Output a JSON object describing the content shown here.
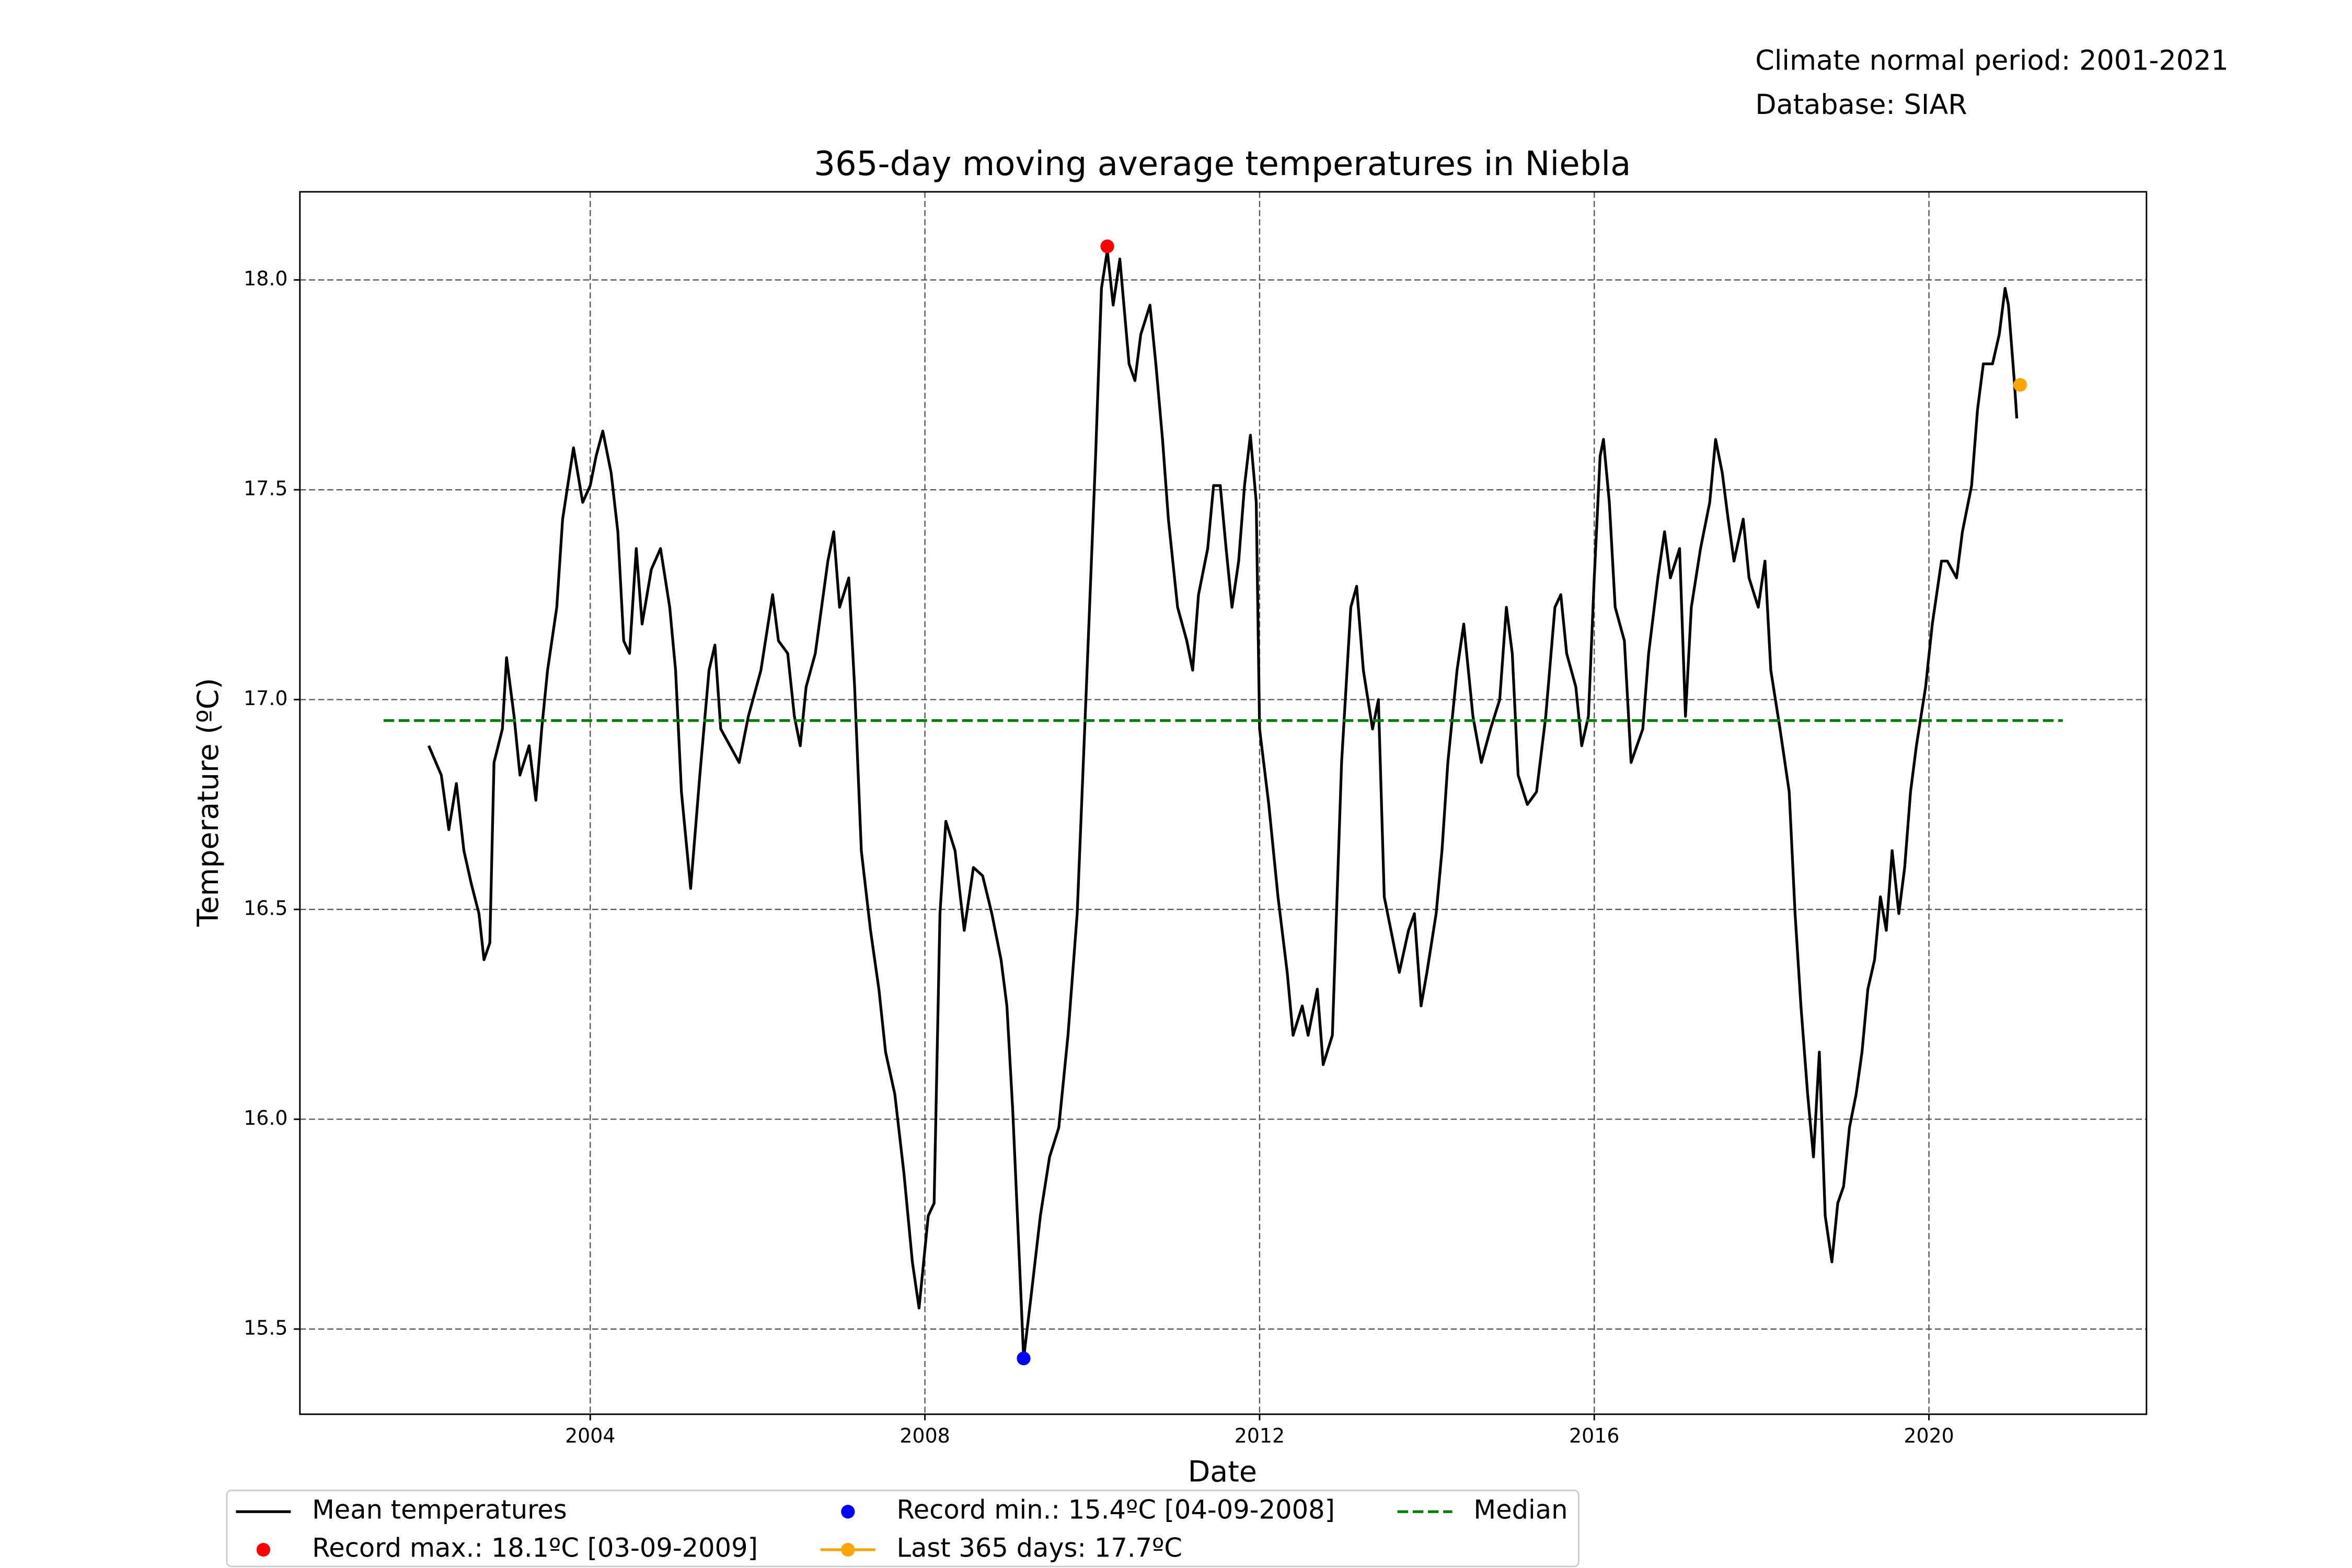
{
  "chart_data": {
    "type": "line",
    "title": "365-day moving average temperatures in Niebla",
    "annotations": [
      "Climate normal period: 2001-2021",
      "Database: SIAR"
    ],
    "xlabel": "Date",
    "ylabel": "Temperature (ºC)",
    "xlim": [
      2000.53,
      2022.6
    ],
    "ylim": [
      15.297,
      18.21
    ],
    "xticks": [
      2004,
      2008,
      2012,
      2016,
      2020
    ],
    "yticks": [
      {
        "value": 15.5,
        "label": "15.5"
      },
      {
        "value": 16,
        "label": "16.0"
      },
      {
        "value": 16.5,
        "label": "16.5"
      },
      {
        "value": 17,
        "label": "17.0"
      },
      {
        "value": 17.5,
        "label": "17.5"
      },
      {
        "value": 18,
        "label": "18.0"
      }
    ],
    "grid": true,
    "legend": "lower center",
    "series": [
      {
        "name": "Mean temperatures",
        "color": "#000000",
        "style": "line",
        "x": [
          2002.07,
          2002.22,
          2002.31,
          2002.4,
          2002.49,
          2002.58,
          2002.67,
          2002.73,
          2002.8,
          2002.85,
          2002.95,
          2003.0,
          2003.09,
          2003.16,
          2003.27,
          2003.35,
          2003.42,
          2003.49,
          2003.6,
          2003.67,
          2003.8,
          2003.91,
          2004.0,
          2004.07,
          2004.15,
          2004.25,
          2004.33,
          2004.4,
          2004.47,
          2004.55,
          2004.62,
          2004.73,
          2004.84,
          2004.95,
          2005.02,
          2005.09,
          2005.2,
          2005.31,
          2005.42,
          2005.49,
          2005.56,
          2005.67,
          2005.78,
          2005.89,
          2006.04,
          2006.18,
          2006.25,
          2006.36,
          2006.44,
          2006.51,
          2006.58,
          2006.69,
          2006.84,
          2006.91,
          2006.98,
          2007.09,
          2007.16,
          2007.24,
          2007.35,
          2007.45,
          2007.53,
          2007.64,
          2007.75,
          2007.85,
          2007.93,
          2008.04,
          2008.11,
          2008.18,
          2008.25,
          2008.36,
          2008.47,
          2008.58,
          2008.69,
          2008.8,
          2008.91,
          2008.98,
          2009.05,
          2009.13,
          2009.18,
          2009.27,
          2009.38,
          2009.49,
          2009.6,
          2009.71,
          2009.82,
          2009.93,
          2010.04,
          2010.11,
          2010.18,
          2010.25,
          2010.33,
          2010.44,
          2010.51,
          2010.58,
          2010.69,
          2010.76,
          2010.84,
          2010.91,
          2011.02,
          2011.13,
          2011.2,
          2011.27,
          2011.38,
          2011.45,
          2011.53,
          2011.6,
          2011.67,
          2011.75,
          2011.82,
          2011.89,
          2011.96,
          2012.0,
          2012.11,
          2012.22,
          2012.33,
          2012.4,
          2012.51,
          2012.58,
          2012.69,
          2012.76,
          2012.87,
          2012.98,
          2013.09,
          2013.16,
          2013.24,
          2013.35,
          2013.42,
          2013.49,
          2013.6,
          2013.67,
          2013.78,
          2013.85,
          2013.93,
          2014.0,
          2014.11,
          2014.18,
          2014.25,
          2014.36,
          2014.44,
          2014.55,
          2014.65,
          2014.76,
          2014.87,
          2014.95,
          2015.02,
          2015.09,
          2015.2,
          2015.31,
          2015.42,
          2015.53,
          2015.6,
          2015.67,
          2015.78,
          2015.85,
          2015.93,
          2016.0,
          2016.07,
          2016.11,
          2016.18,
          2016.25,
          2016.36,
          2016.44,
          2016.51,
          2016.58,
          2016.65,
          2016.76,
          2016.84,
          2016.91,
          2017.02,
          2017.09,
          2017.16,
          2017.27,
          2017.38,
          2017.45,
          2017.53,
          2017.6,
          2017.67,
          2017.78,
          2017.85,
          2017.96,
          2018.04,
          2018.11,
          2018.22,
          2018.33,
          2018.4,
          2018.47,
          2018.55,
          2018.62,
          2018.69,
          2018.76,
          2018.84,
          2018.91,
          2018.98,
          2019.05,
          2019.13,
          2019.2,
          2019.27,
          2019.35,
          2019.42,
          2019.49,
          2019.56,
          2019.64,
          2019.71,
          2019.78,
          2019.85,
          2019.96,
          2020.04,
          2020.15,
          2020.22,
          2020.33,
          2020.4,
          2020.51,
          2020.58,
          2020.65,
          2020.76,
          2020.84,
          2020.91,
          2020.95,
          2021.02,
          2021.05
        ],
        "values": [
          16.89,
          16.82,
          16.69,
          16.8,
          16.64,
          16.56,
          16.49,
          16.38,
          16.42,
          16.85,
          16.93,
          17.1,
          16.96,
          16.82,
          16.89,
          16.76,
          16.93,
          17.07,
          17.22,
          17.43,
          17.6,
          17.47,
          17.51,
          17.58,
          17.64,
          17.54,
          17.4,
          17.14,
          17.11,
          17.36,
          17.18,
          17.31,
          17.36,
          17.22,
          17.07,
          16.78,
          16.55,
          16.82,
          17.07,
          17.13,
          16.93,
          16.89,
          16.85,
          16.96,
          17.07,
          17.25,
          17.14,
          17.11,
          16.96,
          16.89,
          17.03,
          17.11,
          17.33,
          17.4,
          17.22,
          17.29,
          17.03,
          16.64,
          16.45,
          16.31,
          16.16,
          16.06,
          15.87,
          15.66,
          15.55,
          15.77,
          15.8,
          16.49,
          16.71,
          16.64,
          16.45,
          16.6,
          16.58,
          16.49,
          16.38,
          16.27,
          16.02,
          15.66,
          15.43,
          15.58,
          15.77,
          15.91,
          15.98,
          16.2,
          16.49,
          17.03,
          17.58,
          17.98,
          18.07,
          17.94,
          18.05,
          17.8,
          17.76,
          17.87,
          17.94,
          17.8,
          17.62,
          17.43,
          17.22,
          17.14,
          17.07,
          17.25,
          17.36,
          17.51,
          17.51,
          17.36,
          17.22,
          17.33,
          17.51,
          17.63,
          17.47,
          16.93,
          16.75,
          16.53,
          16.35,
          16.2,
          16.27,
          16.2,
          16.31,
          16.13,
          16.2,
          16.85,
          17.22,
          17.27,
          17.07,
          16.93,
          17.0,
          16.53,
          16.42,
          16.35,
          16.45,
          16.49,
          16.27,
          16.35,
          16.49,
          16.64,
          16.85,
          17.07,
          17.18,
          16.96,
          16.85,
          16.93,
          17.0,
          17.22,
          17.11,
          16.82,
          16.75,
          16.78,
          16.96,
          17.22,
          17.25,
          17.11,
          17.03,
          16.89,
          16.96,
          17.29,
          17.58,
          17.62,
          17.47,
          17.22,
          17.14,
          16.85,
          16.89,
          16.93,
          17.11,
          17.29,
          17.4,
          17.29,
          17.36,
          16.96,
          17.22,
          17.36,
          17.47,
          17.62,
          17.54,
          17.43,
          17.33,
          17.43,
          17.29,
          17.22,
          17.33,
          17.07,
          16.93,
          16.78,
          16.49,
          16.27,
          16.06,
          15.91,
          16.16,
          15.77,
          15.66,
          15.8,
          15.84,
          15.98,
          16.06,
          16.16,
          16.31,
          16.38,
          16.53,
          16.45,
          16.64,
          16.49,
          16.6,
          16.78,
          16.89,
          17.03,
          17.18,
          17.33,
          17.33,
          17.29,
          17.4,
          17.51,
          17.69,
          17.8,
          17.8,
          17.87,
          17.98,
          17.94,
          17.76,
          17.67
        ]
      },
      {
        "name": "Record max.: 18.1ºC [03-09-2009]",
        "color": "#ff0000",
        "style": "marker",
        "x": [
          2010.18
        ],
        "values": [
          18.08
        ]
      },
      {
        "name": "Record min.: 15.4ºC [04-09-2008]",
        "color": "#0000ff",
        "style": "marker",
        "x": [
          2009.18
        ],
        "values": [
          15.43
        ]
      },
      {
        "name": "Last 365 days: 17.7ºC",
        "color": "#ffa500",
        "style": "line-marker",
        "x": [
          2021.09
        ],
        "values": [
          17.75
        ]
      },
      {
        "name": "Median",
        "color": "#008000",
        "style": "dashed",
        "x": [
          2001.53,
          2021.6
        ],
        "values": [
          16.95,
          16.95
        ]
      }
    ]
  }
}
